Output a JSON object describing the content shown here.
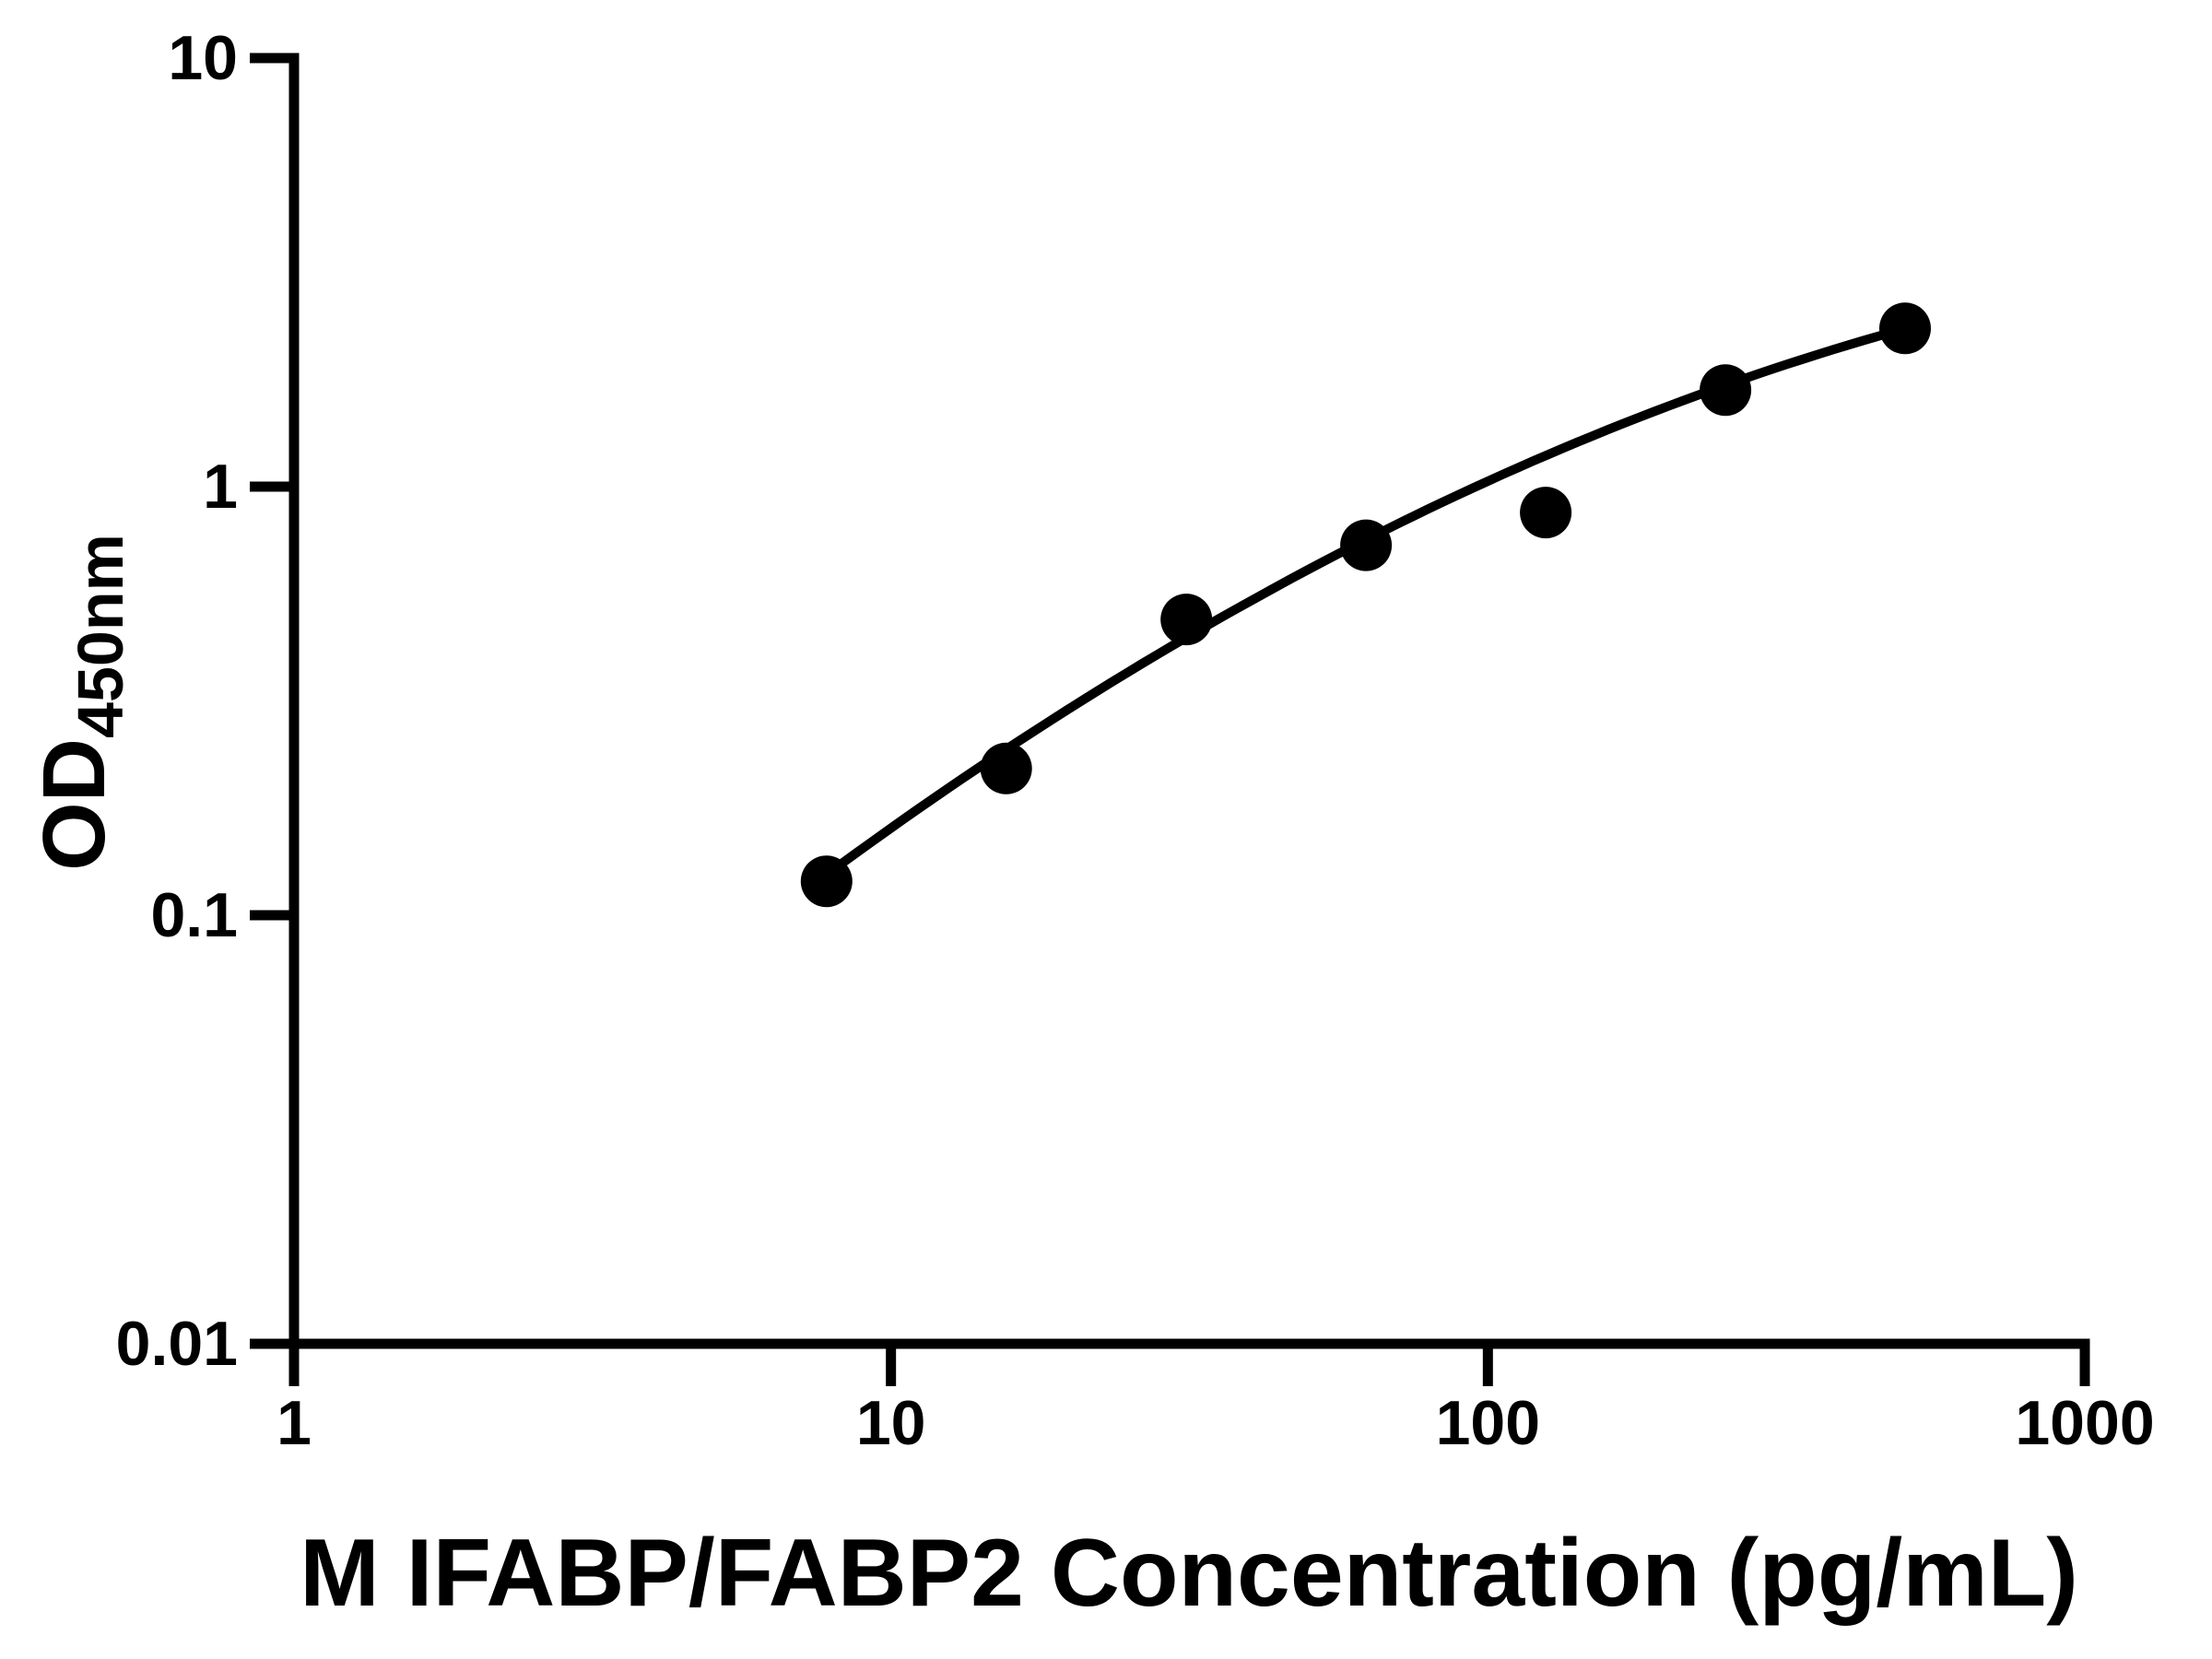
{
  "figure": {
    "background": "#ffffff",
    "foreground": "#000000"
  },
  "chart_data": {
    "type": "scatter",
    "title": "",
    "xlabel": "M IFABP/FABP2 Concentration (pg/mL)",
    "ylabel": "OD450nm",
    "ylabel_main": "OD",
    "ylabel_sub": "450nm",
    "x_scale": "log10",
    "y_scale": "log10",
    "xlim": [
      1,
      1000
    ],
    "ylim": [
      0.01,
      10
    ],
    "grid": "off",
    "legend": "none",
    "x_axis": {
      "ticks": [
        {
          "value": 1,
          "label": "1"
        },
        {
          "value": 10,
          "label": "10"
        },
        {
          "value": 100,
          "label": "100"
        },
        {
          "value": 1000,
          "label": "1000"
        }
      ]
    },
    "y_axis": {
      "ticks": [
        {
          "value": 10,
          "label": "10"
        },
        {
          "value": 1,
          "label": "1"
        },
        {
          "value": 0.1,
          "label": "0.1"
        },
        {
          "value": 0.01,
          "label": "0.01"
        }
      ]
    },
    "series": [
      {
        "name": "standard-points",
        "marker": "circle",
        "marker_radius_px": 28,
        "color": "#000000",
        "x": [
          7.8,
          15.6,
          31.25,
          62.5,
          125,
          250,
          500
        ],
        "y": [
          0.12,
          0.22,
          0.49,
          0.73,
          0.87,
          1.68,
          2.34
        ]
      }
    ],
    "fit_curve": {
      "name": "standard-curve-fit",
      "color": "#000000",
      "stroke_width_px": 10,
      "model": "quadratic in log10(x) vs log10(y): logy = a + b*logx + c*logx^2",
      "a": -1.96,
      "b": 1.34,
      "c": -0.1768,
      "x_start": 7.8,
      "x_end": 505
    }
  }
}
